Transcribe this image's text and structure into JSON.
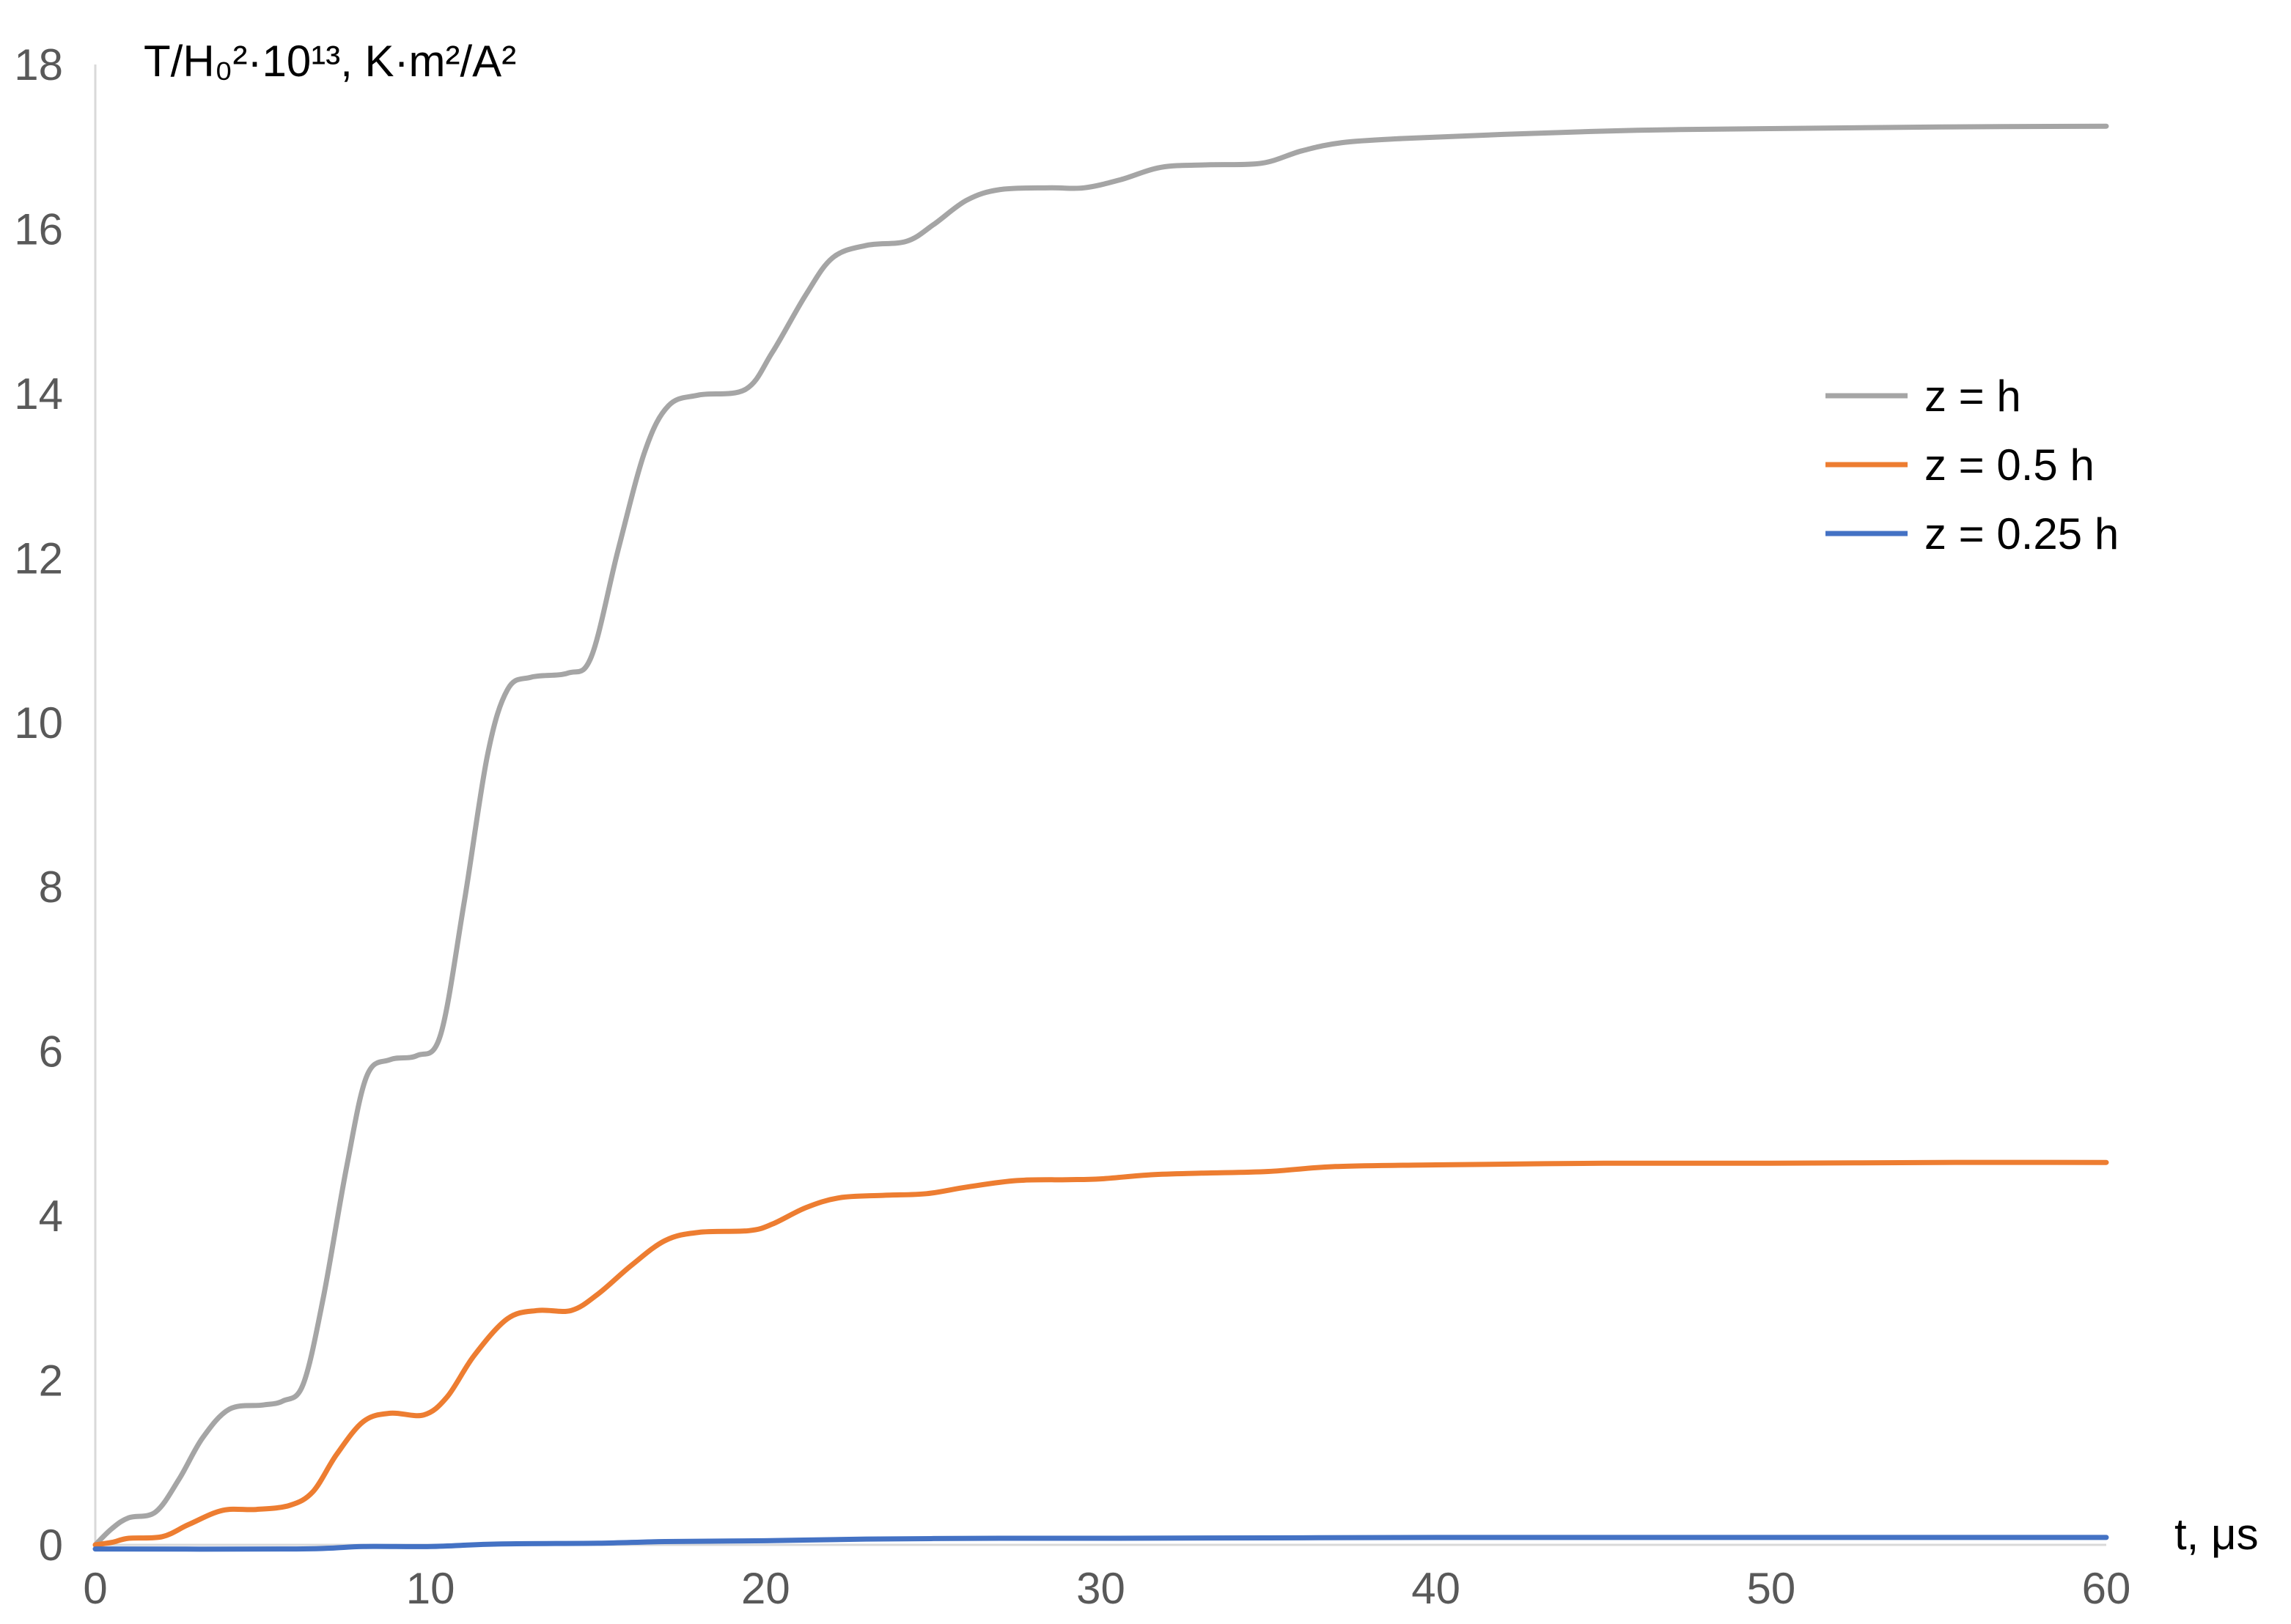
{
  "chart_data": {
    "type": "line",
    "ylabel": "T/H₀²·10¹³, K·m²/A²",
    "xlabel": "t, μs",
    "xlim": [
      0,
      60
    ],
    "ylim": [
      0,
      18
    ],
    "xticks": [
      "0",
      "10",
      "20",
      "30",
      "40",
      "50",
      "60"
    ],
    "yticks": [
      "0",
      "2",
      "4",
      "6",
      "8",
      "10",
      "12",
      "14",
      "16",
      "18"
    ],
    "grid": false,
    "legend_position": "right",
    "series": [
      {
        "name": "z = h",
        "color": "#a5a5a5",
        "points": [
          [
            0,
            0
          ],
          [
            0.5,
            0.2
          ],
          [
            1,
            0.33
          ],
          [
            1.8,
            0.4
          ],
          [
            2.5,
            0.8
          ],
          [
            3.2,
            1.3
          ],
          [
            4,
            1.65
          ],
          [
            5,
            1.7
          ],
          [
            5.6,
            1.75
          ],
          [
            6.2,
            1.95
          ],
          [
            6.8,
            3.0
          ],
          [
            7.5,
            4.6
          ],
          [
            8.1,
            5.7
          ],
          [
            8.8,
            5.9
          ],
          [
            9.6,
            5.95
          ],
          [
            10.3,
            6.2
          ],
          [
            11,
            7.8
          ],
          [
            11.7,
            9.6
          ],
          [
            12.3,
            10.4
          ],
          [
            13,
            10.55
          ],
          [
            14.1,
            10.6
          ],
          [
            14.8,
            10.8
          ],
          [
            15.6,
            12.1
          ],
          [
            16.4,
            13.3
          ],
          [
            17.1,
            13.85
          ],
          [
            18,
            13.98
          ],
          [
            19.4,
            14.05
          ],
          [
            20.2,
            14.5
          ],
          [
            21.2,
            15.2
          ],
          [
            22,
            15.65
          ],
          [
            23,
            15.8
          ],
          [
            24.2,
            15.85
          ],
          [
            25,
            16.05
          ],
          [
            26,
            16.35
          ],
          [
            27,
            16.48
          ],
          [
            28.5,
            16.5
          ],
          [
            29.5,
            16.5
          ],
          [
            30.6,
            16.6
          ],
          [
            31.8,
            16.75
          ],
          [
            33.2,
            16.78
          ],
          [
            34.8,
            16.8
          ],
          [
            36,
            16.95
          ],
          [
            37.2,
            17.05
          ],
          [
            39,
            17.1
          ],
          [
            42,
            17.15
          ],
          [
            46,
            17.2
          ],
          [
            50,
            17.22
          ],
          [
            55,
            17.24
          ],
          [
            60,
            17.25
          ]
        ]
      },
      {
        "name": "z = 0.5 h",
        "color": "#ed7d31",
        "points": [
          [
            0,
            0
          ],
          [
            0.5,
            0.03
          ],
          [
            1,
            0.08
          ],
          [
            2,
            0.1
          ],
          [
            2.8,
            0.25
          ],
          [
            3.8,
            0.42
          ],
          [
            4.8,
            0.43
          ],
          [
            5.8,
            0.48
          ],
          [
            6.5,
            0.65
          ],
          [
            7.2,
            1.1
          ],
          [
            8,
            1.5
          ],
          [
            8.8,
            1.6
          ],
          [
            9.8,
            1.58
          ],
          [
            10.5,
            1.8
          ],
          [
            11.3,
            2.3
          ],
          [
            12.3,
            2.75
          ],
          [
            13.2,
            2.85
          ],
          [
            14.2,
            2.85
          ],
          [
            15,
            3.05
          ],
          [
            16,
            3.4
          ],
          [
            17,
            3.7
          ],
          [
            18,
            3.8
          ],
          [
            19.5,
            3.82
          ],
          [
            20.2,
            3.9
          ],
          [
            21.2,
            4.1
          ],
          [
            22.2,
            4.22
          ],
          [
            23.5,
            4.25
          ],
          [
            24.8,
            4.27
          ],
          [
            26,
            4.35
          ],
          [
            27.5,
            4.43
          ],
          [
            29,
            4.44
          ],
          [
            30,
            4.45
          ],
          [
            31.5,
            4.5
          ],
          [
            33,
            4.52
          ],
          [
            35,
            4.54
          ],
          [
            37,
            4.6
          ],
          [
            40,
            4.62
          ],
          [
            45,
            4.64
          ],
          [
            50,
            4.64
          ],
          [
            55,
            4.65
          ],
          [
            60,
            4.65
          ]
        ]
      },
      {
        "name": "z = 0.25 h",
        "color": "#4472c4",
        "points": [
          [
            0,
            -0.05
          ],
          [
            6,
            -0.05
          ],
          [
            8,
            -0.02
          ],
          [
            10,
            -0.02
          ],
          [
            12,
            0.01
          ],
          [
            15,
            0.02
          ],
          [
            17,
            0.04
          ],
          [
            20,
            0.05
          ],
          [
            23,
            0.07
          ],
          [
            27,
            0.08
          ],
          [
            30,
            0.08
          ],
          [
            35,
            0.085
          ],
          [
            40,
            0.09
          ],
          [
            50,
            0.09
          ],
          [
            60,
            0.09
          ]
        ]
      }
    ]
  }
}
